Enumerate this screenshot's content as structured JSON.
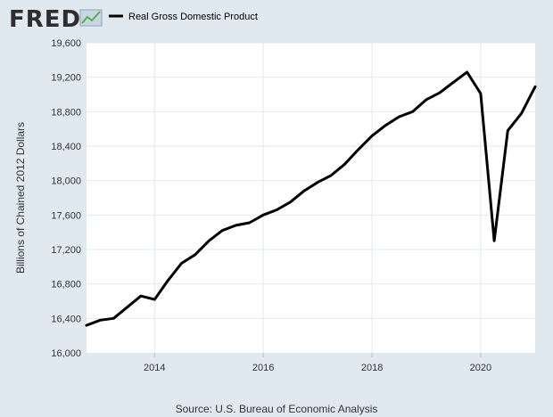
{
  "brand": {
    "logo_text": "FRED",
    "logo_icon": "chart-line-icon"
  },
  "colors": {
    "background": "#e1e9f0",
    "plot_background": "#ffffff",
    "gridline": "#e1e9f0",
    "series_line": "#000000"
  },
  "chart_data": {
    "type": "line",
    "title": "",
    "xlabel": "",
    "ylabel": "Billions of Chained 2012 Dollars",
    "source": "Source: U.S. Bureau of Economic Analysis",
    "grid": true,
    "legend_position": "top-left",
    "xlim": [
      "2012-10-01",
      "2021-01-01"
    ],
    "ylim": [
      16000,
      19600
    ],
    "x_ticks": [
      "2014",
      "2016",
      "2018",
      "2020"
    ],
    "y_ticks": [
      "16,000",
      "16,400",
      "16,800",
      "17,200",
      "17,600",
      "18,000",
      "18,400",
      "18,800",
      "19,200",
      "19,600"
    ],
    "y_tick_values": [
      16000,
      16400,
      16800,
      17200,
      17600,
      18000,
      18400,
      18800,
      19200,
      19600
    ],
    "series": [
      {
        "name": "Real Gross Domestic Product",
        "color": "#000000",
        "points": [
          {
            "date": "2012-10-01",
            "value": 16320
          },
          {
            "date": "2013-01-01",
            "value": 16380
          },
          {
            "date": "2013-04-01",
            "value": 16400
          },
          {
            "date": "2013-07-01",
            "value": 16530
          },
          {
            "date": "2013-10-01",
            "value": 16660
          },
          {
            "date": "2014-01-01",
            "value": 16620
          },
          {
            "date": "2014-04-01",
            "value": 16840
          },
          {
            "date": "2014-07-01",
            "value": 17040
          },
          {
            "date": "2014-10-01",
            "value": 17140
          },
          {
            "date": "2015-01-01",
            "value": 17300
          },
          {
            "date": "2015-04-01",
            "value": 17420
          },
          {
            "date": "2015-07-01",
            "value": 17480
          },
          {
            "date": "2015-10-01",
            "value": 17510
          },
          {
            "date": "2016-01-01",
            "value": 17600
          },
          {
            "date": "2016-04-01",
            "value": 17660
          },
          {
            "date": "2016-07-01",
            "value": 17750
          },
          {
            "date": "2016-10-01",
            "value": 17880
          },
          {
            "date": "2017-01-01",
            "value": 17980
          },
          {
            "date": "2017-04-01",
            "value": 18060
          },
          {
            "date": "2017-07-01",
            "value": 18190
          },
          {
            "date": "2017-10-01",
            "value": 18360
          },
          {
            "date": "2018-01-01",
            "value": 18520
          },
          {
            "date": "2018-04-01",
            "value": 18640
          },
          {
            "date": "2018-07-01",
            "value": 18740
          },
          {
            "date": "2018-10-01",
            "value": 18800
          },
          {
            "date": "2019-01-01",
            "value": 18940
          },
          {
            "date": "2019-04-01",
            "value": 19020
          },
          {
            "date": "2019-07-01",
            "value": 19140
          },
          {
            "date": "2019-10-01",
            "value": 19260
          },
          {
            "date": "2020-01-01",
            "value": 19010
          },
          {
            "date": "2020-04-01",
            "value": 17300
          },
          {
            "date": "2020-07-01",
            "value": 18580
          },
          {
            "date": "2020-10-01",
            "value": 18780
          },
          {
            "date": "2021-01-01",
            "value": 19090
          }
        ]
      }
    ]
  }
}
